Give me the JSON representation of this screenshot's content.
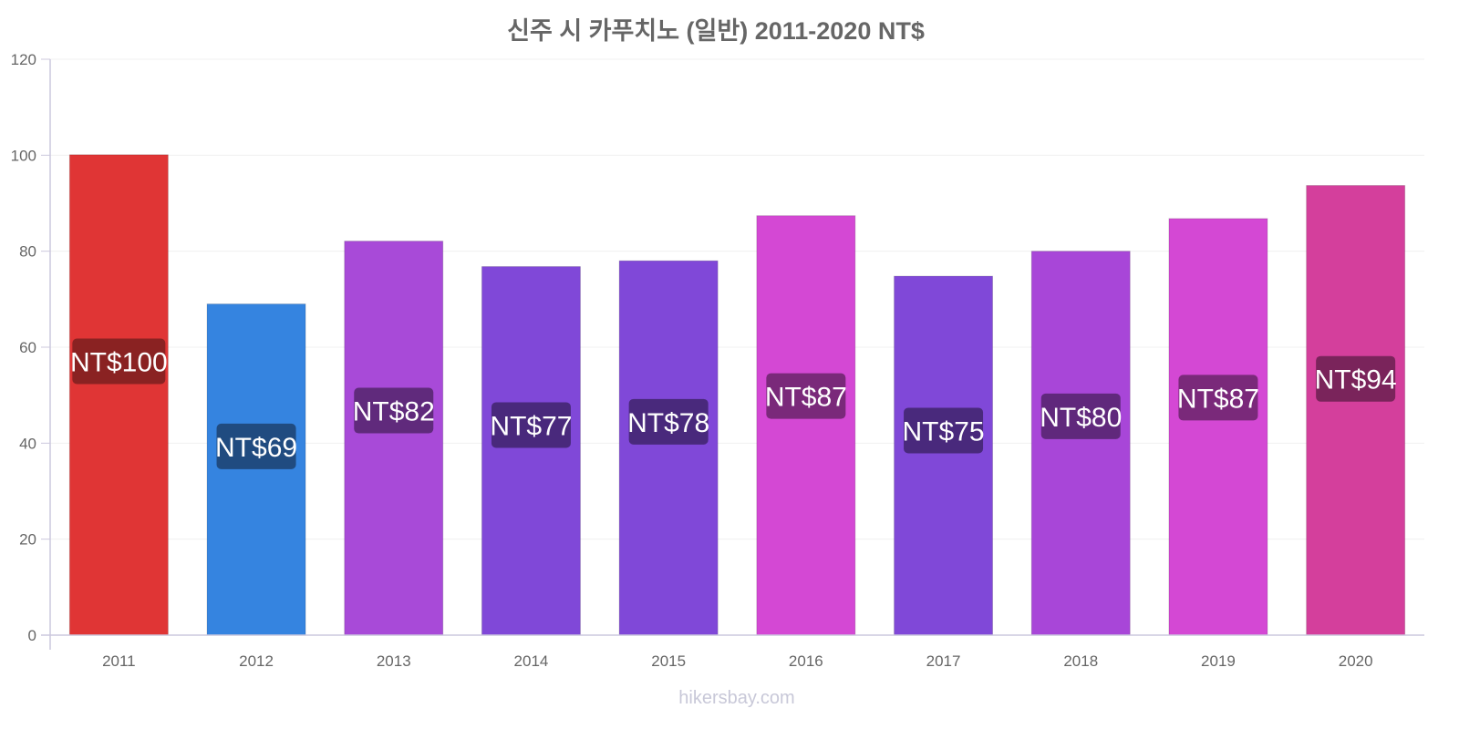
{
  "chart_data": {
    "type": "bar",
    "title": "신주 시 카푸치노 (일반) 2011-2020 NT$",
    "xlabel": "",
    "ylabel": "",
    "ylim": [
      0,
      120
    ],
    "yticks": [
      0,
      20,
      40,
      60,
      80,
      100,
      120
    ],
    "grid": true,
    "categories": [
      "2011",
      "2012",
      "2013",
      "2014",
      "2015",
      "2016",
      "2017",
      "2018",
      "2019",
      "2020"
    ],
    "values": [
      100.1,
      69.0,
      82.1,
      76.8,
      78.0,
      87.4,
      74.8,
      80.0,
      86.8,
      93.7
    ],
    "data_labels": [
      "NT$100",
      "NT$69",
      "NT$82",
      "NT$77",
      "NT$78",
      "NT$87",
      "NT$75",
      "NT$80",
      "NT$87",
      "NT$94"
    ],
    "colors": [
      "#e03535",
      "#3584e0",
      "#a84ad8",
      "#8048d8",
      "#8048d8",
      "#d448d4",
      "#8048d8",
      "#a846d8",
      "#d448d4",
      "#d43f9c"
    ],
    "label_colors": [
      "#6e1c1c",
      "#1c416e",
      "#54246c",
      "#40246c",
      "#40246c",
      "#6a246a",
      "#40246c",
      "#54236c",
      "#6a246a",
      "#6a2050"
    ]
  },
  "watermark": "hikersbay.com"
}
